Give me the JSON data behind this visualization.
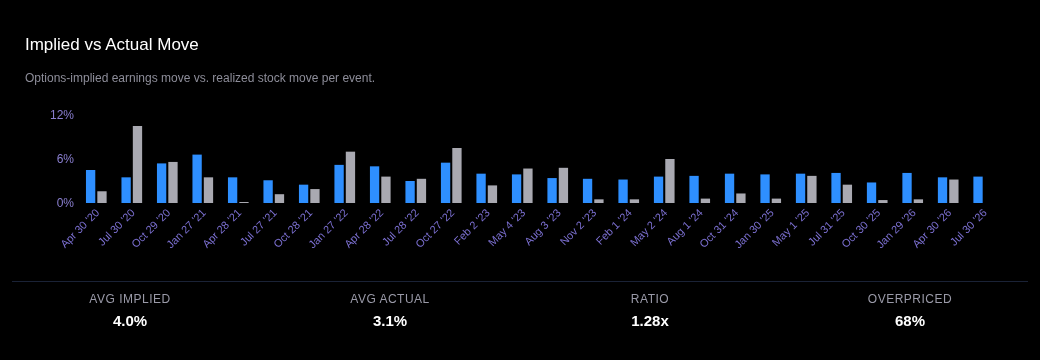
{
  "chart_data": [
    {
      "type": "bar",
      "title": "Implied vs Actual Move",
      "subtitle": "Options-implied earnings move vs. realized stock move per event.",
      "categories": [
        "Apr 30 '20",
        "Jul 30 '20",
        "Oct 29 '20",
        "Jan 27 '21",
        "Apr 28 '21",
        "Jul 27 '21",
        "Oct 28 '21",
        "Jan 27 '22",
        "Apr 28 '22",
        "Jul 28 '22",
        "Oct 27 '22",
        "Feb 2 '23",
        "May 4 '23",
        "Aug 3 '23",
        "Nov 2 '23",
        "Feb 1 '24",
        "May 2 '24",
        "Aug 1 '24",
        "Oct 31 '24",
        "Jan 30 '25",
        "May 1 '25",
        "Jul 31 '25",
        "Oct 30 '25",
        "Jan 29 '26",
        "Apr 30 '26",
        "Jul 30 '26"
      ],
      "series": [
        {
          "color": "#2e8fff",
          "values": [
            4.5,
            3.5,
            5.4,
            6.6,
            3.5,
            3.1,
            2.5,
            5.2,
            5.0,
            3.0,
            5.5,
            4.0,
            3.9,
            3.4,
            3.3,
            3.2,
            3.6,
            3.7,
            4.0,
            3.9,
            4.0,
            4.1,
            2.8,
            4.1,
            3.5,
            3.6
          ]
        },
        {
          "color": "#a9a9b1",
          "values": [
            1.6,
            10.5,
            5.6,
            3.5,
            0.1,
            1.2,
            1.9,
            7.0,
            3.6,
            3.3,
            7.5,
            2.4,
            4.7,
            4.8,
            0.5,
            0.5,
            6.0,
            0.6,
            1.3,
            0.6,
            3.7,
            2.5,
            0.4,
            0.5,
            3.2,
            null
          ]
        }
      ],
      "ylim": [
        0,
        12
      ],
      "yticks": [
        {
          "value": 0,
          "label": "0%"
        },
        {
          "value": 6,
          "label": "6%"
        },
        {
          "value": 12,
          "label": "12%"
        }
      ],
      "grid": false
    },
    {
      "type": "other",
      "annotations": [
        "AVG IMPLIED",
        "4.0%",
        "AVG ACTUAL",
        "3.1%",
        "RATIO",
        "1.28x",
        "OVERPRICED",
        "68%"
      ]
    }
  ]
}
